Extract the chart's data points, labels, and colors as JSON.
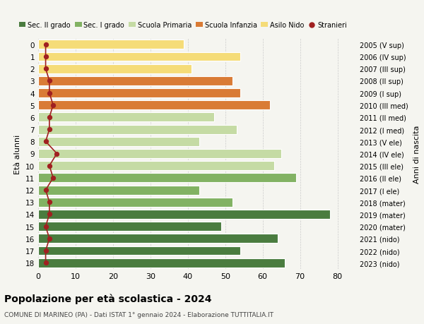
{
  "ages": [
    18,
    17,
    16,
    15,
    14,
    13,
    12,
    11,
    10,
    9,
    8,
    7,
    6,
    5,
    4,
    3,
    2,
    1,
    0
  ],
  "years": [
    "2005 (V sup)",
    "2006 (IV sup)",
    "2007 (III sup)",
    "2008 (II sup)",
    "2009 (I sup)",
    "2010 (III med)",
    "2011 (II med)",
    "2012 (I med)",
    "2013 (V ele)",
    "2014 (IV ele)",
    "2015 (III ele)",
    "2016 (II ele)",
    "2017 (I ele)",
    "2018 (mater)",
    "2019 (mater)",
    "2020 (mater)",
    "2021 (nido)",
    "2022 (nido)",
    "2023 (nido)"
  ],
  "values": [
    66,
    54,
    64,
    49,
    78,
    52,
    43,
    69,
    63,
    65,
    43,
    53,
    47,
    62,
    54,
    52,
    41,
    54,
    39
  ],
  "stranieri": [
    2,
    2,
    3,
    2,
    3,
    3,
    2,
    4,
    3,
    5,
    2,
    3,
    3,
    4,
    3,
    3,
    2,
    2,
    2
  ],
  "bar_colors": [
    "#4a7c3f",
    "#4a7c3f",
    "#4a7c3f",
    "#4a7c3f",
    "#4a7c3f",
    "#82b263",
    "#82b263",
    "#82b263",
    "#c5dba4",
    "#c5dba4",
    "#c5dba4",
    "#c5dba4",
    "#c5dba4",
    "#d97b35",
    "#d97b35",
    "#d97b35",
    "#f5dc78",
    "#f5dc78",
    "#f5dc78"
  ],
  "legend_labels": [
    "Sec. II grado",
    "Sec. I grado",
    "Scuola Primaria",
    "Scuola Infanzia",
    "Asilo Nido",
    "Stranieri"
  ],
  "legend_colors": [
    "#4a7c3f",
    "#82b263",
    "#c5dba4",
    "#d97b35",
    "#f5dc78",
    "#a02020"
  ],
  "stranieri_color": "#a02020",
  "title": "Popolazione per età scolastica - 2024",
  "subtitle": "COMUNE DI MARINEO (PA) - Dati ISTAT 1° gennaio 2024 - Elaborazione TUTTITALIA.IT",
  "ylabel_left": "Età alunni",
  "ylabel_right": "Anni di nascita",
  "xlim": [
    0,
    85
  ],
  "xticks": [
    0,
    10,
    20,
    30,
    40,
    50,
    60,
    70,
    80
  ],
  "bg_color": "#f5f5f0"
}
